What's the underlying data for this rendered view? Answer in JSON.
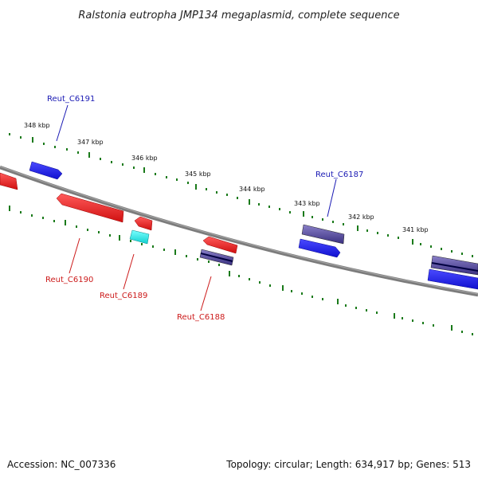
{
  "title": "Ralstonia eutropha JMP134 megaplasmid, complete sequence",
  "footer": {
    "accession": "Accession: NC_007336",
    "summary": "Topology: circular; Length: 634,917 bp; Genes: 513"
  },
  "colors": {
    "forward_gene": "#1f1fe6",
    "reverse_gene": "#e61e1e",
    "cyan_gene": "#1ee6e6",
    "purple_gene": "#5a50a0",
    "forward_label": "#1a1ab4",
    "reverse_label": "#cc1a1a",
    "ticks": "#1a7a1a",
    "backbone": "#808080"
  },
  "scale_labels": [
    "348 kbp",
    "347 kbp",
    "346 kbp",
    "345 kbp",
    "344 kbp",
    "343 kbp",
    "342 kbp",
    "341 kbp"
  ],
  "gene_labels": {
    "forward": [
      "Reut_C6191",
      "Reut_C6187"
    ],
    "reverse": [
      "Reut_C6190",
      "Reut_C6189",
      "Reut_C6188"
    ]
  }
}
